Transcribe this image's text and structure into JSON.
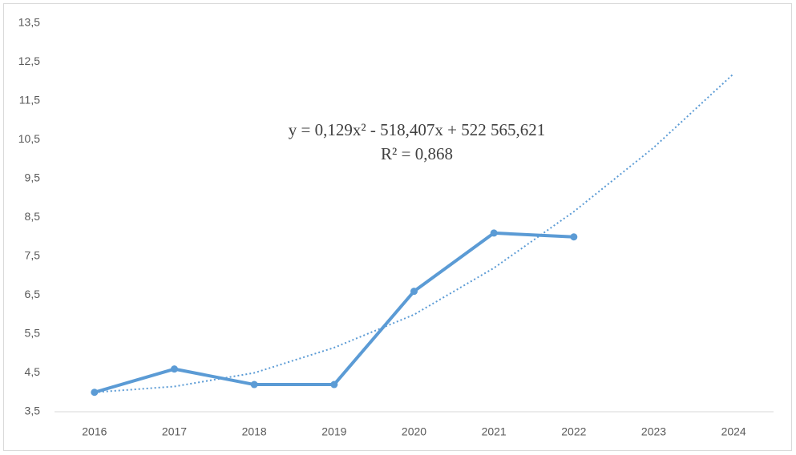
{
  "chart_data": {
    "type": "line",
    "categories": [
      "2016",
      "2017",
      "2018",
      "2019",
      "2020",
      "2021",
      "2022",
      "2023",
      "2024"
    ],
    "values": [
      4.0,
      4.6,
      4.2,
      4.2,
      6.6,
      8.1,
      8.0,
      null,
      null
    ],
    "color": "#5b9bd5",
    "trendline": {
      "values": [
        4.0,
        4.15,
        4.5,
        5.15,
        6.0,
        7.2,
        8.65,
        10.3,
        12.2
      ],
      "style": "dotted"
    },
    "annotations": [
      "y = 0,129x² - 518,407x + 522 565,621",
      "R² = 0,868"
    ],
    "ylim": [
      3.5,
      13.5
    ],
    "yticks": [
      {
        "value": 3.5,
        "label": "3,5"
      },
      {
        "value": 4.5,
        "label": "4,5"
      },
      {
        "value": 5.5,
        "label": "5,5"
      },
      {
        "value": 6.5,
        "label": "6,5"
      },
      {
        "value": 7.5,
        "label": "7,5"
      },
      {
        "value": 8.5,
        "label": "8,5"
      },
      {
        "value": 9.5,
        "label": "9,5"
      },
      {
        "value": 10.5,
        "label": "10,5"
      },
      {
        "value": 11.5,
        "label": "11,5"
      },
      {
        "value": 12.5,
        "label": "12,5"
      },
      {
        "value": 13.5,
        "label": "13,5"
      }
    ],
    "grid": false
  }
}
